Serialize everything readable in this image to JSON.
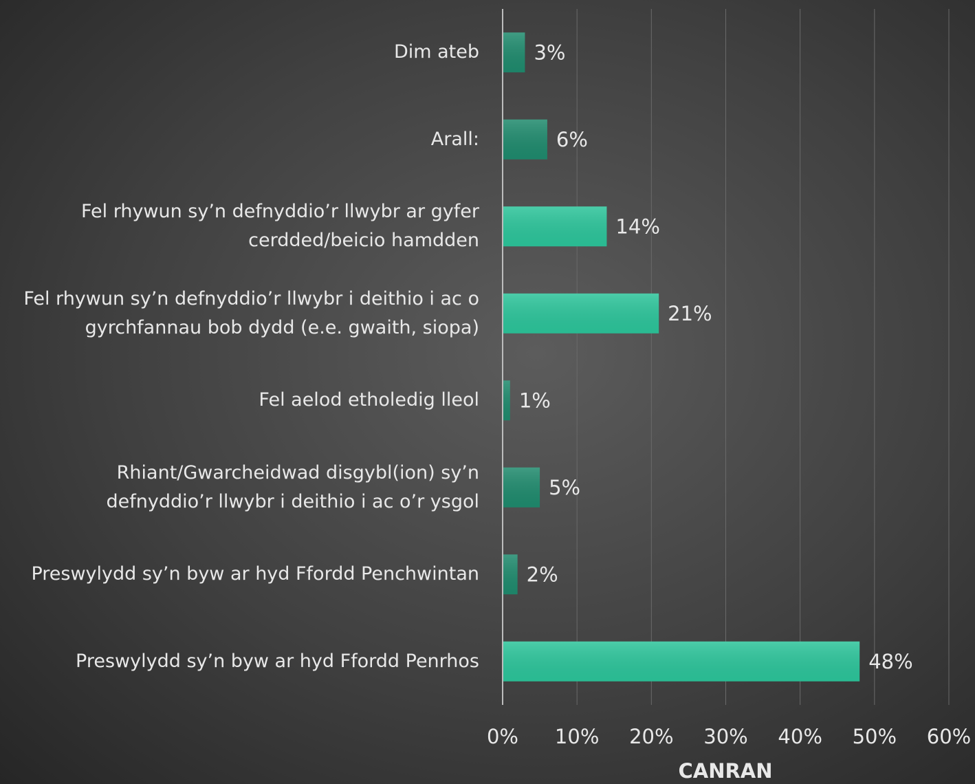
{
  "chart_data": {
    "type": "hbar",
    "categories": [
      "Dim ateb",
      "Arall:",
      "Fel rhywun sy’n defnyddio’r llwybr ar gyfer cerdded/beicio hamdden",
      "Fel rhywun sy’n defnyddio’r llwybr i deithio i ac o gyrchfannau bob dydd (e.e. gwaith, siopa)",
      "Fel aelod etholedig lleol",
      "Rhiant/Gwarcheidwad disgybl(ion) sy’n defnyddio’r llwybr i deithio i ac o’r ysgol",
      "Preswylydd sy’n byw ar hyd Ffordd Penchwintan",
      "Preswylydd sy’n byw ar hyd Ffordd Penrhos"
    ],
    "values": [
      3,
      6,
      14,
      21,
      1,
      5,
      2,
      48
    ],
    "value_labels": [
      "3%",
      "6%",
      "14%",
      "21%",
      "1%",
      "5%",
      "2%",
      "48%"
    ],
    "colors": [
      "#1f8a6d",
      "#1f8a6d",
      "#2cc49a",
      "#2cc49a",
      "#1f8a6d",
      "#1f8a6d",
      "#1f8a6d",
      "#2cc49a"
    ],
    "xlabel": "CANRAN",
    "xlim": [
      0,
      60
    ],
    "xticks": [
      {
        "value": 0,
        "label": "0%"
      },
      {
        "value": 10,
        "label": "10%"
      },
      {
        "value": 20,
        "label": "20%"
      },
      {
        "value": 30,
        "label": "30%"
      },
      {
        "value": 40,
        "label": "40%"
      },
      {
        "value": 50,
        "label": "50%"
      },
      {
        "value": 60,
        "label": "60%"
      }
    ],
    "grid": true
  }
}
